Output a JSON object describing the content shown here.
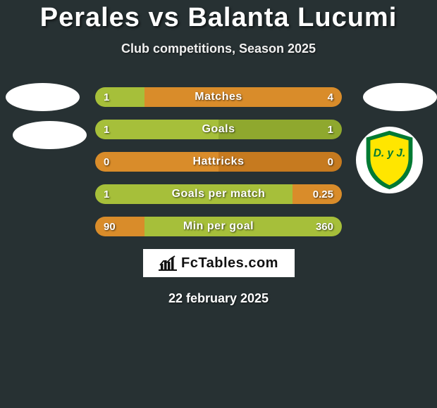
{
  "title": "Perales vs Balanta Lucumi",
  "subtitle": "Club competitions, Season 2025",
  "date": "22 february 2025",
  "branding": {
    "text": "FcTables.com"
  },
  "colors": {
    "left_primary": "#a6bf3a",
    "left_secondary": "#8fa82e",
    "right_primary": "#d98c2a",
    "right_secondary": "#c67a1f",
    "neutral": "#273133",
    "background": "#273133"
  },
  "crest": {
    "outer": "#007a33",
    "inner": "#ffe600",
    "text": "D. y J.",
    "text_color": "#007a33"
  },
  "stats": [
    {
      "label": "Matches",
      "left_val": "1",
      "right_val": "4",
      "left_pct": 20,
      "right_pct": 80,
      "left_color": "#a6bf3a",
      "right_color": "#d98c2a"
    },
    {
      "label": "Goals",
      "left_val": "1",
      "right_val": "1",
      "left_pct": 50,
      "right_pct": 50,
      "left_color": "#a6bf3a",
      "right_color": "#8fa82e"
    },
    {
      "label": "Hattricks",
      "left_val": "0",
      "right_val": "0",
      "left_pct": 50,
      "right_pct": 50,
      "left_color": "#d98c2a",
      "right_color": "#c67a1f"
    },
    {
      "label": "Goals per match",
      "left_val": "1",
      "right_val": "0.25",
      "left_pct": 80,
      "right_pct": 20,
      "left_color": "#a6bf3a",
      "right_color": "#d98c2a"
    },
    {
      "label": "Min per goal",
      "left_val": "90",
      "right_val": "360",
      "left_pct": 20,
      "right_pct": 80,
      "left_color": "#d98c2a",
      "right_color": "#a6bf3a"
    }
  ]
}
